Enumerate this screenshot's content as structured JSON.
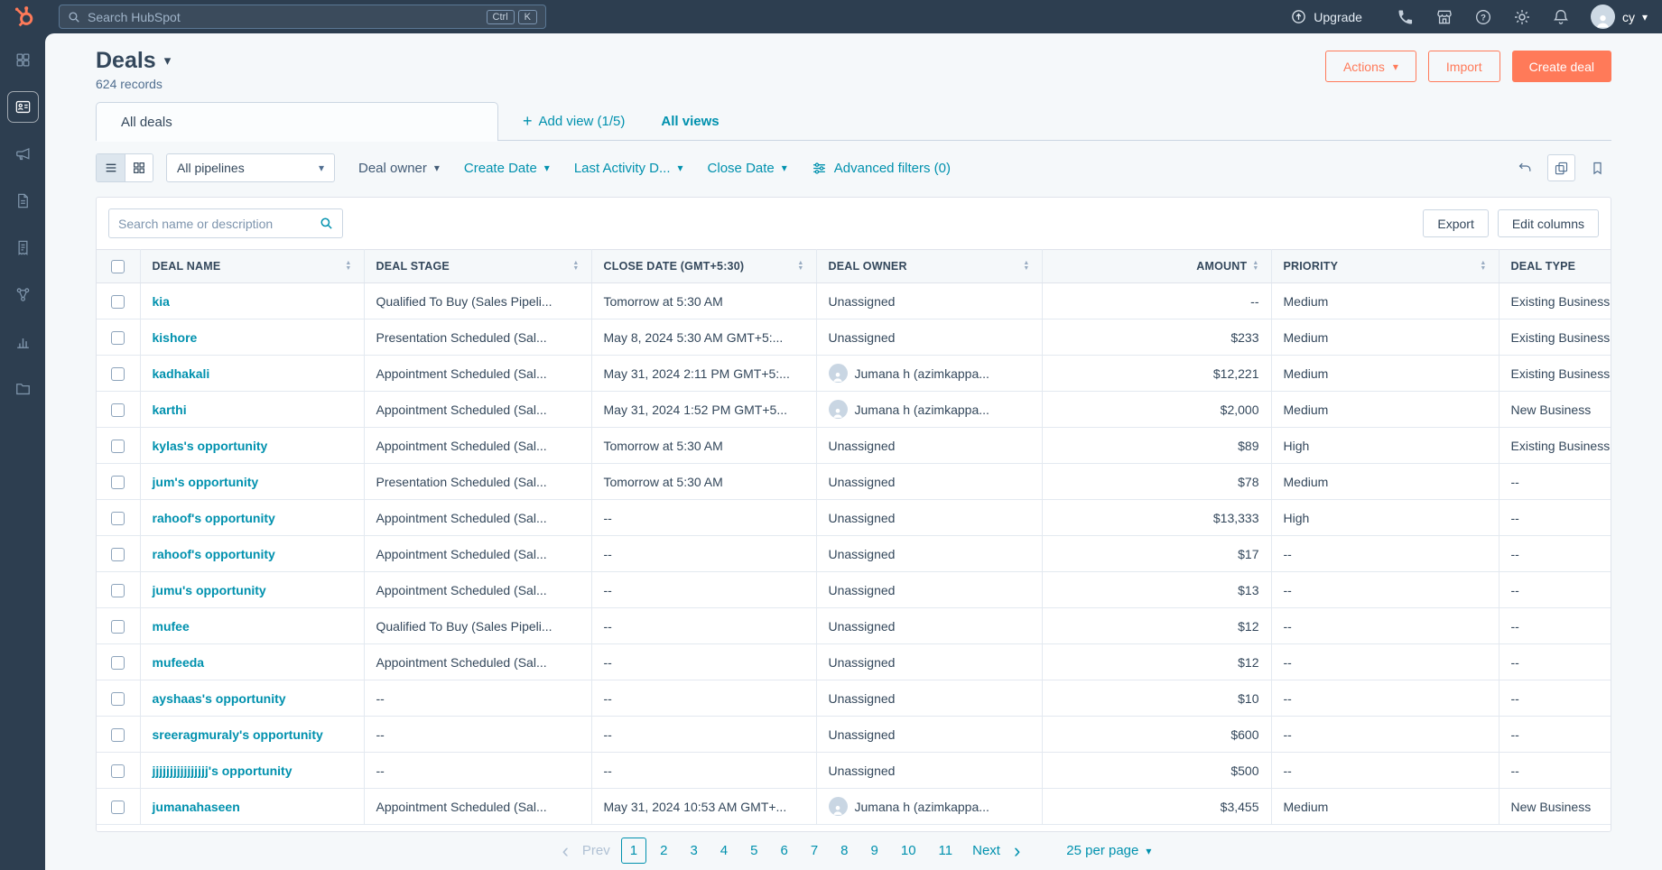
{
  "icons": {
    "caret_down": "▾",
    "sort_up": "▲",
    "sort_down": "▼",
    "plus": "+",
    "chevron_left": "‹",
    "chevron_right": "›"
  },
  "topnav": {
    "search_placeholder": "Search HubSpot",
    "shortcut_ctrl": "Ctrl",
    "shortcut_k": "K",
    "upgrade_label": "Upgrade",
    "user_initials": "cy"
  },
  "header": {
    "title": "Deals",
    "records": "624 records",
    "actions": "Actions",
    "import": "Import",
    "create_deal": "Create deal"
  },
  "tabs": {
    "all_deals": "All deals",
    "add_view": "Add view (1/5)",
    "all_views": "All views"
  },
  "toolbar": {
    "pipelines": "All pipelines",
    "deal_owner": "Deal owner",
    "create_date": "Create Date",
    "last_activity": "Last Activity D...",
    "close_date": "Close Date",
    "advanced_filters": "Advanced filters (0)"
  },
  "controls": {
    "search_placeholder": "Search name or description",
    "export": "Export",
    "edit_columns": "Edit columns"
  },
  "table": {
    "columns": {
      "deal_name": "DEAL NAME",
      "deal_stage": "DEAL STAGE",
      "close_date": "CLOSE DATE (GMT+5:30)",
      "deal_owner": "DEAL OWNER",
      "amount": "AMOUNT",
      "priority": "PRIORITY",
      "deal_type": "DEAL TYPE"
    },
    "rows": [
      {
        "name": "kia",
        "stage": "Qualified To Buy (Sales Pipeli...",
        "close": "Tomorrow at 5:30 AM",
        "owner": "Unassigned",
        "owner_avatar": false,
        "amount": "--",
        "priority": "Medium",
        "type": "Existing Business"
      },
      {
        "name": "kishore",
        "stage": "Presentation Scheduled (Sal...",
        "close": "May 8, 2024 5:30 AM GMT+5:...",
        "owner": "Unassigned",
        "owner_avatar": false,
        "amount": "$233",
        "priority": "Medium",
        "type": "Existing Business"
      },
      {
        "name": "kadhakali",
        "stage": "Appointment Scheduled (Sal...",
        "close": "May 31, 2024 2:11 PM GMT+5:...",
        "owner": "Jumana h (azimkappa...",
        "owner_avatar": true,
        "amount": "$12,221",
        "priority": "Medium",
        "type": "Existing Business"
      },
      {
        "name": "karthi",
        "stage": "Appointment Scheduled (Sal...",
        "close": "May 31, 2024 1:52 PM GMT+5...",
        "owner": "Jumana h (azimkappa...",
        "owner_avatar": true,
        "amount": "$2,000",
        "priority": "Medium",
        "type": "New Business"
      },
      {
        "name": "kylas's opportunity",
        "stage": "Appointment Scheduled (Sal...",
        "close": "Tomorrow at 5:30 AM",
        "owner": "Unassigned",
        "owner_avatar": false,
        "amount": "$89",
        "priority": "High",
        "type": "Existing Business"
      },
      {
        "name": "jum's opportunity",
        "stage": "Presentation Scheduled (Sal...",
        "close": "Tomorrow at 5:30 AM",
        "owner": "Unassigned",
        "owner_avatar": false,
        "amount": "$78",
        "priority": "Medium",
        "type": "--"
      },
      {
        "name": "rahoof's opportunity",
        "stage": "Appointment Scheduled (Sal...",
        "close": "--",
        "owner": "Unassigned",
        "owner_avatar": false,
        "amount": "$13,333",
        "priority": "High",
        "type": "--"
      },
      {
        "name": "rahoof's opportunity",
        "stage": "Appointment Scheduled (Sal...",
        "close": "--",
        "owner": "Unassigned",
        "owner_avatar": false,
        "amount": "$17",
        "priority": "--",
        "type": "--"
      },
      {
        "name": "jumu's opportunity",
        "stage": "Appointment Scheduled (Sal...",
        "close": "--",
        "owner": "Unassigned",
        "owner_avatar": false,
        "amount": "$13",
        "priority": "--",
        "type": "--"
      },
      {
        "name": "mufee",
        "stage": "Qualified To Buy (Sales Pipeli...",
        "close": "--",
        "owner": "Unassigned",
        "owner_avatar": false,
        "amount": "$12",
        "priority": "--",
        "type": "--"
      },
      {
        "name": "mufeeda",
        "stage": "Appointment Scheduled (Sal...",
        "close": "--",
        "owner": "Unassigned",
        "owner_avatar": false,
        "amount": "$12",
        "priority": "--",
        "type": "--"
      },
      {
        "name": "ayshaas's opportunity",
        "stage": "--",
        "close": "--",
        "owner": "Unassigned",
        "owner_avatar": false,
        "amount": "$10",
        "priority": "--",
        "type": "--"
      },
      {
        "name": "sreeragmuraly's opportunity",
        "stage": "--",
        "close": "--",
        "owner": "Unassigned",
        "owner_avatar": false,
        "amount": "$600",
        "priority": "--",
        "type": "--"
      },
      {
        "name": "jjjjjjjjjjjjjjjj's opportunity",
        "stage": "--",
        "close": "--",
        "owner": "Unassigned",
        "owner_avatar": false,
        "amount": "$500",
        "priority": "--",
        "type": "--"
      },
      {
        "name": "jumanahaseen",
        "stage": "Appointment Scheduled (Sal...",
        "close": "May 31, 2024 10:53 AM GMT+...",
        "owner": "Jumana h (azimkappa...",
        "owner_avatar": true,
        "amount": "$3,455",
        "priority": "Medium",
        "type": "New Business"
      }
    ]
  },
  "pagination": {
    "prev": "Prev",
    "next": "Next",
    "pages": [
      "1",
      "2",
      "3",
      "4",
      "5",
      "6",
      "7",
      "8",
      "9",
      "10",
      "11"
    ],
    "active_page": "1",
    "per_page": "25 per page"
  }
}
